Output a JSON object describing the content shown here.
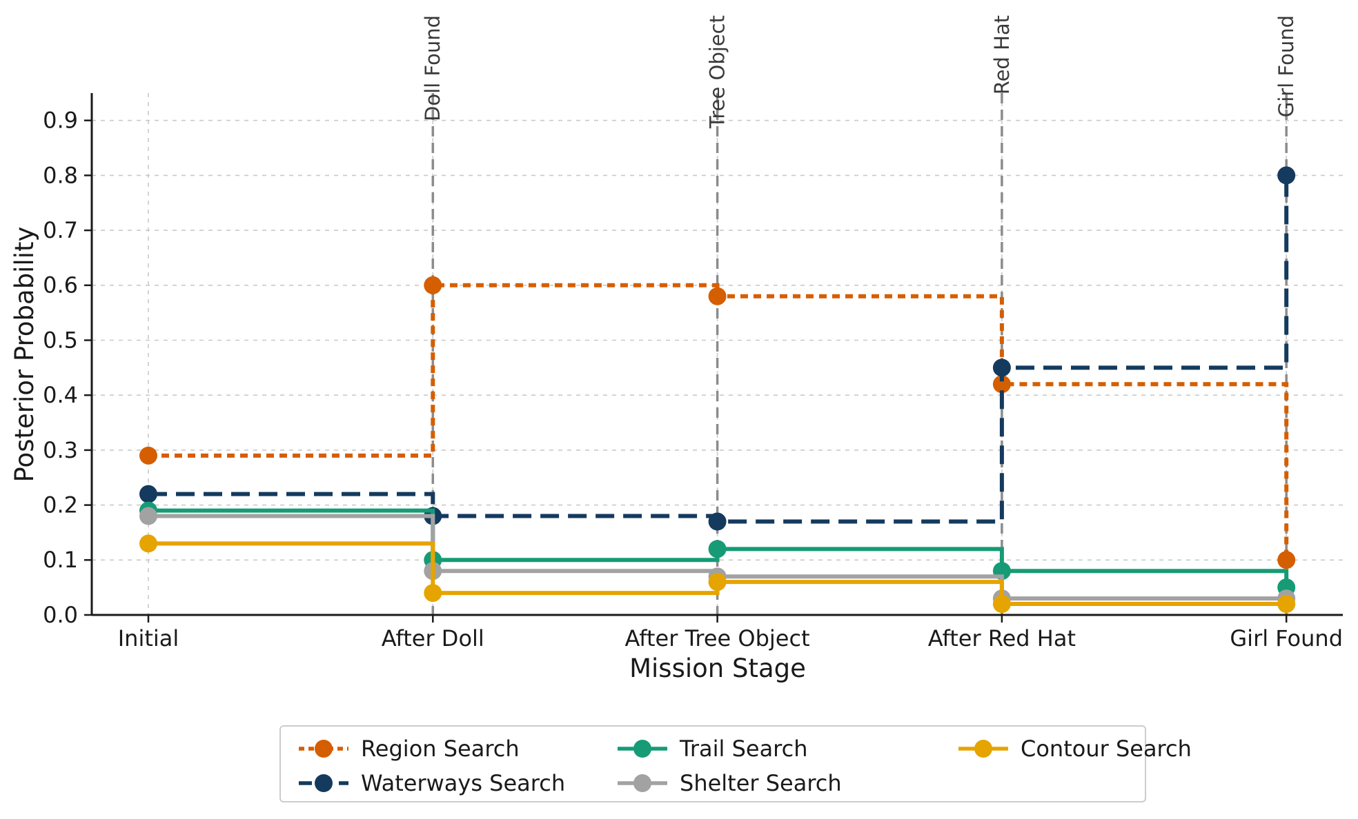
{
  "chart_data": {
    "type": "line",
    "step": "post",
    "xlabel": "Mission Stage",
    "ylabel": "Posterior Probability",
    "categories": [
      "Initial",
      "After Doll",
      "After Tree Object",
      "After Red Hat",
      "Girl Found"
    ],
    "yticks": [
      0.0,
      0.1,
      0.2,
      0.3,
      0.4,
      0.5,
      0.6,
      0.7,
      0.8,
      0.9
    ],
    "ylim": [
      0,
      0.95
    ],
    "grid": true,
    "legend_position": "bottom",
    "events": [
      {
        "label": "Doll Found",
        "stage_index": 1
      },
      {
        "label": "Tree Object",
        "stage_index": 2
      },
      {
        "label": "Red Hat",
        "stage_index": 3
      },
      {
        "label": "Girl Found",
        "stage_index": 4
      }
    ],
    "series": [
      {
        "name": "Region Search",
        "color": "#d55e00",
        "style": "dotted",
        "values": [
          0.29,
          0.6,
          0.58,
          0.42,
          0.1
        ]
      },
      {
        "name": "Waterways Search",
        "color": "#143a5e",
        "style": "dashed",
        "values": [
          0.22,
          0.18,
          0.17,
          0.45,
          0.8
        ]
      },
      {
        "name": "Trail Search",
        "color": "#169b76",
        "style": "solid",
        "values": [
          0.19,
          0.1,
          0.12,
          0.08,
          0.05
        ]
      },
      {
        "name": "Shelter Search",
        "color": "#a2a2a2",
        "style": "solid",
        "values": [
          0.18,
          0.08,
          0.07,
          0.03,
          0.03
        ]
      },
      {
        "name": "Contour Search",
        "color": "#e6a400",
        "style": "solid",
        "values": [
          0.13,
          0.04,
          0.06,
          0.02,
          0.02
        ]
      }
    ],
    "legend_display_order": [
      "Region Search",
      "Trail Search",
      "Contour Search",
      "Waterways Search",
      "Shelter Search"
    ],
    "colors": {
      "event_line": "#8c8c8c",
      "gridline": "#c9c9c9",
      "spine": "#1a1a1a",
      "tick_label": "#1a1a1a",
      "annotation_text": "#3a3a3a"
    }
  }
}
